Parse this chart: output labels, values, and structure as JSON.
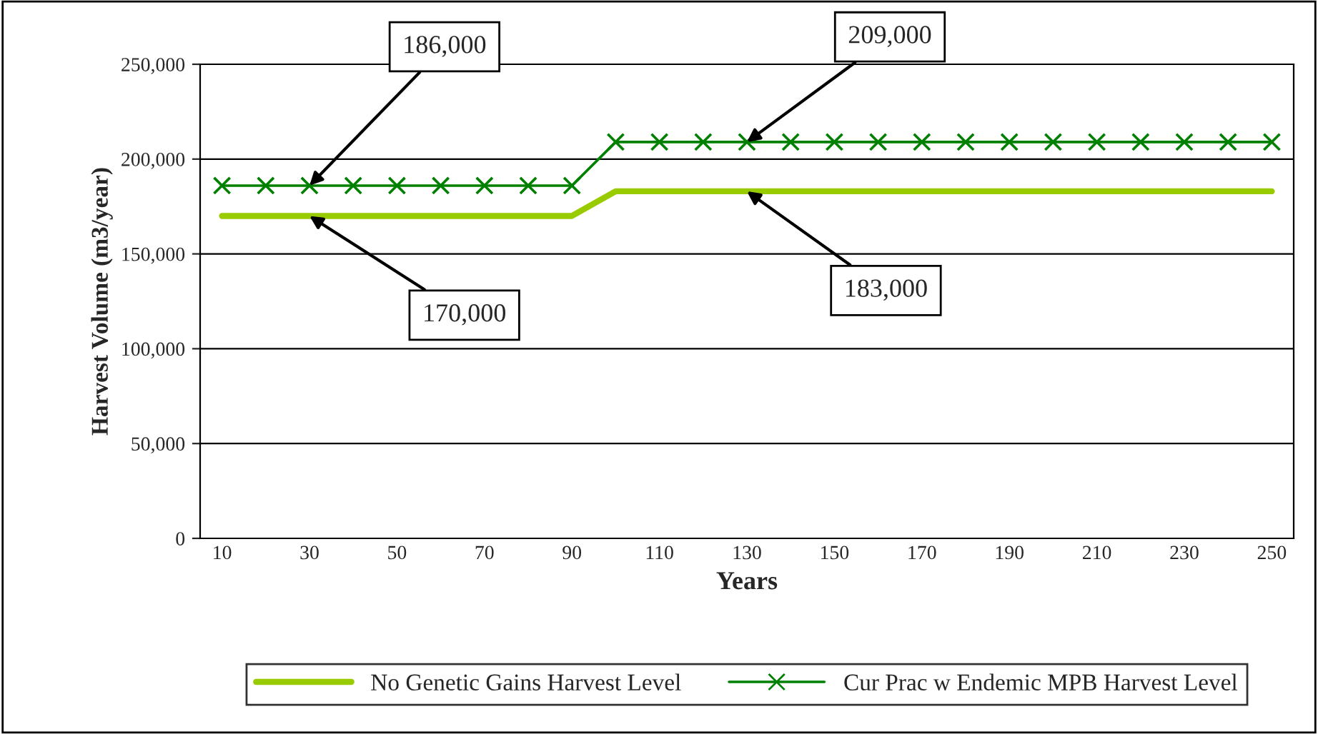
{
  "chart_data": {
    "type": "line",
    "xlabel": "Years",
    "ylabel": "Harvest Volume (m3/year)",
    "categories": [
      "10",
      null,
      "30",
      null,
      "50",
      null,
      "70",
      null,
      "90",
      null,
      "110",
      null,
      "130",
      null,
      "150",
      null,
      "170",
      null,
      "190",
      null,
      "210",
      null,
      "230",
      null,
      "250"
    ],
    "series": [
      {
        "name": "No Genetic Gains Harvest Level",
        "color": "#99cc00",
        "marker": "none",
        "values": [
          170000,
          170000,
          170000,
          170000,
          170000,
          170000,
          170000,
          170000,
          170000,
          183000,
          183000,
          183000,
          183000,
          183000,
          183000,
          183000,
          183000,
          183000,
          183000,
          183000,
          183000,
          183000,
          183000,
          183000,
          183000
        ]
      },
      {
        "name": "Cur Prac w Endemic MPB Harvest Level",
        "color": "#008000",
        "marker": "cross",
        "values": [
          186000,
          186000,
          186000,
          186000,
          186000,
          186000,
          186000,
          186000,
          186000,
          209000,
          209000,
          209000,
          209000,
          209000,
          209000,
          209000,
          209000,
          209000,
          209000,
          209000,
          209000,
          209000,
          209000,
          209000,
          209000
        ]
      }
    ],
    "ylim": [
      0,
      250000
    ],
    "yticks": [
      0,
      {
        "value": 50000,
        "label": "50,000"
      },
      {
        "value": 100000,
        "label": "100,000"
      },
      {
        "value": 150000,
        "label": "150,000"
      },
      {
        "value": 200000,
        "label": "200,000"
      },
      {
        "value": 250000,
        "label": "250,000"
      }
    ],
    "grid": "y",
    "legend": "bottom",
    "annotations": [
      {
        "text": "186,000",
        "x": "30",
        "y": 186000
      },
      {
        "text": "170,000",
        "x": "30",
        "y": 170000
      },
      {
        "text": "209,000",
        "x": "130",
        "y": 209000
      },
      {
        "text": "183,000",
        "x": "130",
        "y": 183000
      }
    ]
  }
}
